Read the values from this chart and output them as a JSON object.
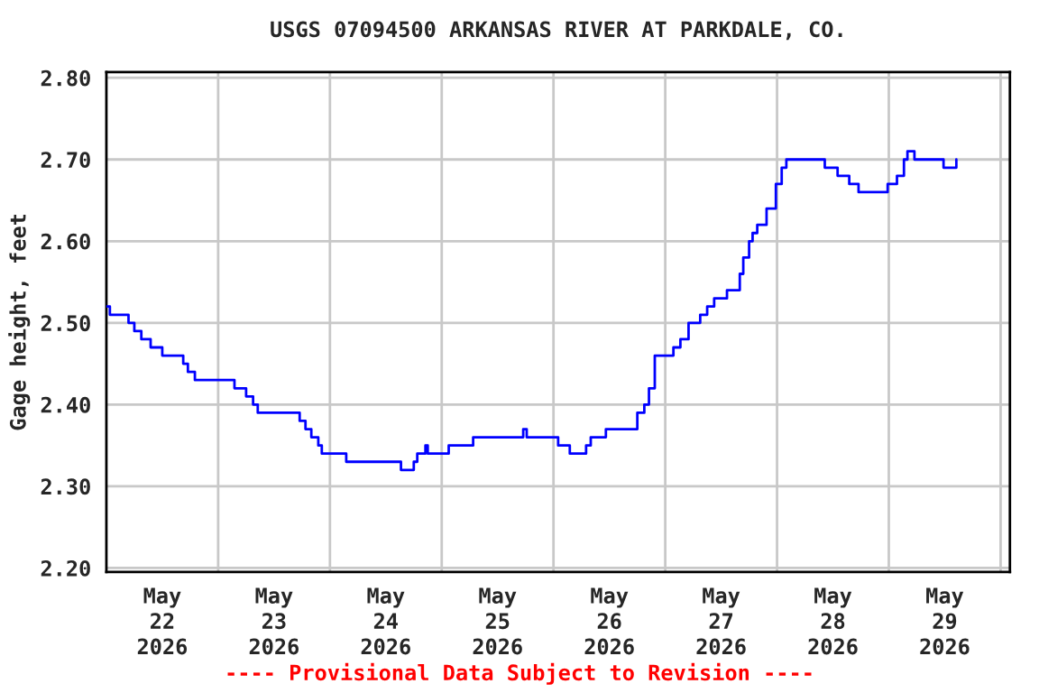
{
  "chart_data": {
    "type": "step",
    "title": "USGS 07094500 ARKANSAS RIVER AT PARKDALE, CO.",
    "ylabel": "Gage height, feet",
    "annotations": [
      "---- Provisional Data Subject to Revision ----"
    ],
    "x": [
      "2026-05-22T00:00",
      "2026-05-22T00:45",
      "2026-05-22T04:45",
      "2026-05-22T06:00",
      "2026-05-22T07:30",
      "2026-05-22T09:30",
      "2026-05-22T12:00",
      "2026-05-22T16:30",
      "2026-05-22T17:30",
      "2026-05-22T19:00",
      "2026-05-23T03:30",
      "2026-05-23T06:00",
      "2026-05-23T07:30",
      "2026-05-23T08:30",
      "2026-05-23T17:30",
      "2026-05-23T18:45",
      "2026-05-23T20:00",
      "2026-05-23T21:30",
      "2026-05-23T22:15",
      "2026-05-24T03:30",
      "2026-05-24T15:15",
      "2026-05-24T18:00",
      "2026-05-24T18:45",
      "2026-05-24T20:30",
      "2026-05-24T21:00",
      "2026-05-25T01:30",
      "2026-05-25T06:45",
      "2026-05-25T17:30",
      "2026-05-25T18:15",
      "2026-05-26T01:00",
      "2026-05-26T03:30",
      "2026-05-26T07:00",
      "2026-05-26T08:00",
      "2026-05-26T11:15",
      "2026-05-26T18:00",
      "2026-05-26T19:30",
      "2026-05-26T20:30",
      "2026-05-26T21:45",
      "2026-05-27T01:45",
      "2026-05-27T03:15",
      "2026-05-27T05:00",
      "2026-05-27T07:30",
      "2026-05-27T09:00",
      "2026-05-27T10:30",
      "2026-05-27T13:15",
      "2026-05-27T16:00",
      "2026-05-27T16:45",
      "2026-05-27T18:00",
      "2026-05-27T18:45",
      "2026-05-27T19:45",
      "2026-05-27T21:45",
      "2026-05-27T23:45",
      "2026-05-28T01:00",
      "2026-05-28T02:00",
      "2026-05-28T10:15",
      "2026-05-28T13:00",
      "2026-05-28T15:30",
      "2026-05-28T17:30",
      "2026-05-28T23:45",
      "2026-05-29T01:45",
      "2026-05-29T03:15",
      "2026-05-29T04:00",
      "2026-05-29T05:30",
      "2026-05-29T11:45",
      "2026-05-29T14:30"
    ],
    "series": [
      {
        "color": "#0000ff",
        "values": [
          2.52,
          2.51,
          2.5,
          2.49,
          2.48,
          2.47,
          2.46,
          2.45,
          2.44,
          2.43,
          2.42,
          2.41,
          2.4,
          2.39,
          2.38,
          2.37,
          2.36,
          2.35,
          2.34,
          2.33,
          2.32,
          2.33,
          2.34,
          2.35,
          2.34,
          2.35,
          2.36,
          2.37,
          2.36,
          2.35,
          2.34,
          2.35,
          2.36,
          2.37,
          2.39,
          2.4,
          2.42,
          2.46,
          2.47,
          2.48,
          2.5,
          2.51,
          2.52,
          2.53,
          2.54,
          2.56,
          2.58,
          2.6,
          2.61,
          2.62,
          2.64,
          2.67,
          2.69,
          2.7,
          2.69,
          2.68,
          2.67,
          2.66,
          2.67,
          2.68,
          2.7,
          2.71,
          2.7,
          2.69,
          2.7
        ]
      }
    ],
    "xlim": [
      "2026-05-22T00:00",
      "2026-05-30T02:00"
    ],
    "xticks": [
      {
        "value": "2026-05-22T12:00",
        "label": "May\n22\n2026"
      },
      {
        "value": "2026-05-23T12:00",
        "label": "May\n23\n2026"
      },
      {
        "value": "2026-05-24T12:00",
        "label": "May\n24\n2026"
      },
      {
        "value": "2026-05-25T12:00",
        "label": "May\n25\n2026"
      },
      {
        "value": "2026-05-26T12:00",
        "label": "May\n26\n2026"
      },
      {
        "value": "2026-05-27T12:00",
        "label": "May\n27\n2026"
      },
      {
        "value": "2026-05-28T12:00",
        "label": "May\n28\n2026"
      },
      {
        "value": "2026-05-29T12:00",
        "label": "May\n29\n2026"
      },
      {
        "value": "2026-05-23T00:00",
        "label": null
      },
      {
        "value": "2026-05-24T00:00",
        "label": null
      },
      {
        "value": "2026-05-25T00:00",
        "label": null
      },
      {
        "value": "2026-05-26T00:00",
        "label": null
      },
      {
        "value": "2026-05-27T00:00",
        "label": null
      },
      {
        "value": "2026-05-28T00:00",
        "label": null
      },
      {
        "value": "2026-05-29T00:00",
        "label": null
      },
      {
        "value": "2026-05-30T00:00",
        "label": null
      }
    ],
    "ylim": [
      2.195,
      2.807
    ],
    "yticks": [
      {
        "value": 2.2,
        "label": "2.20"
      },
      {
        "value": 2.3,
        "label": "2.30"
      },
      {
        "value": 2.4,
        "label": "2.40"
      },
      {
        "value": 2.5,
        "label": "2.50"
      },
      {
        "value": 2.6,
        "label": "2.60"
      },
      {
        "value": 2.7,
        "label": "2.70"
      },
      {
        "value": 2.8,
        "label": "2.80"
      }
    ],
    "grid": true
  }
}
